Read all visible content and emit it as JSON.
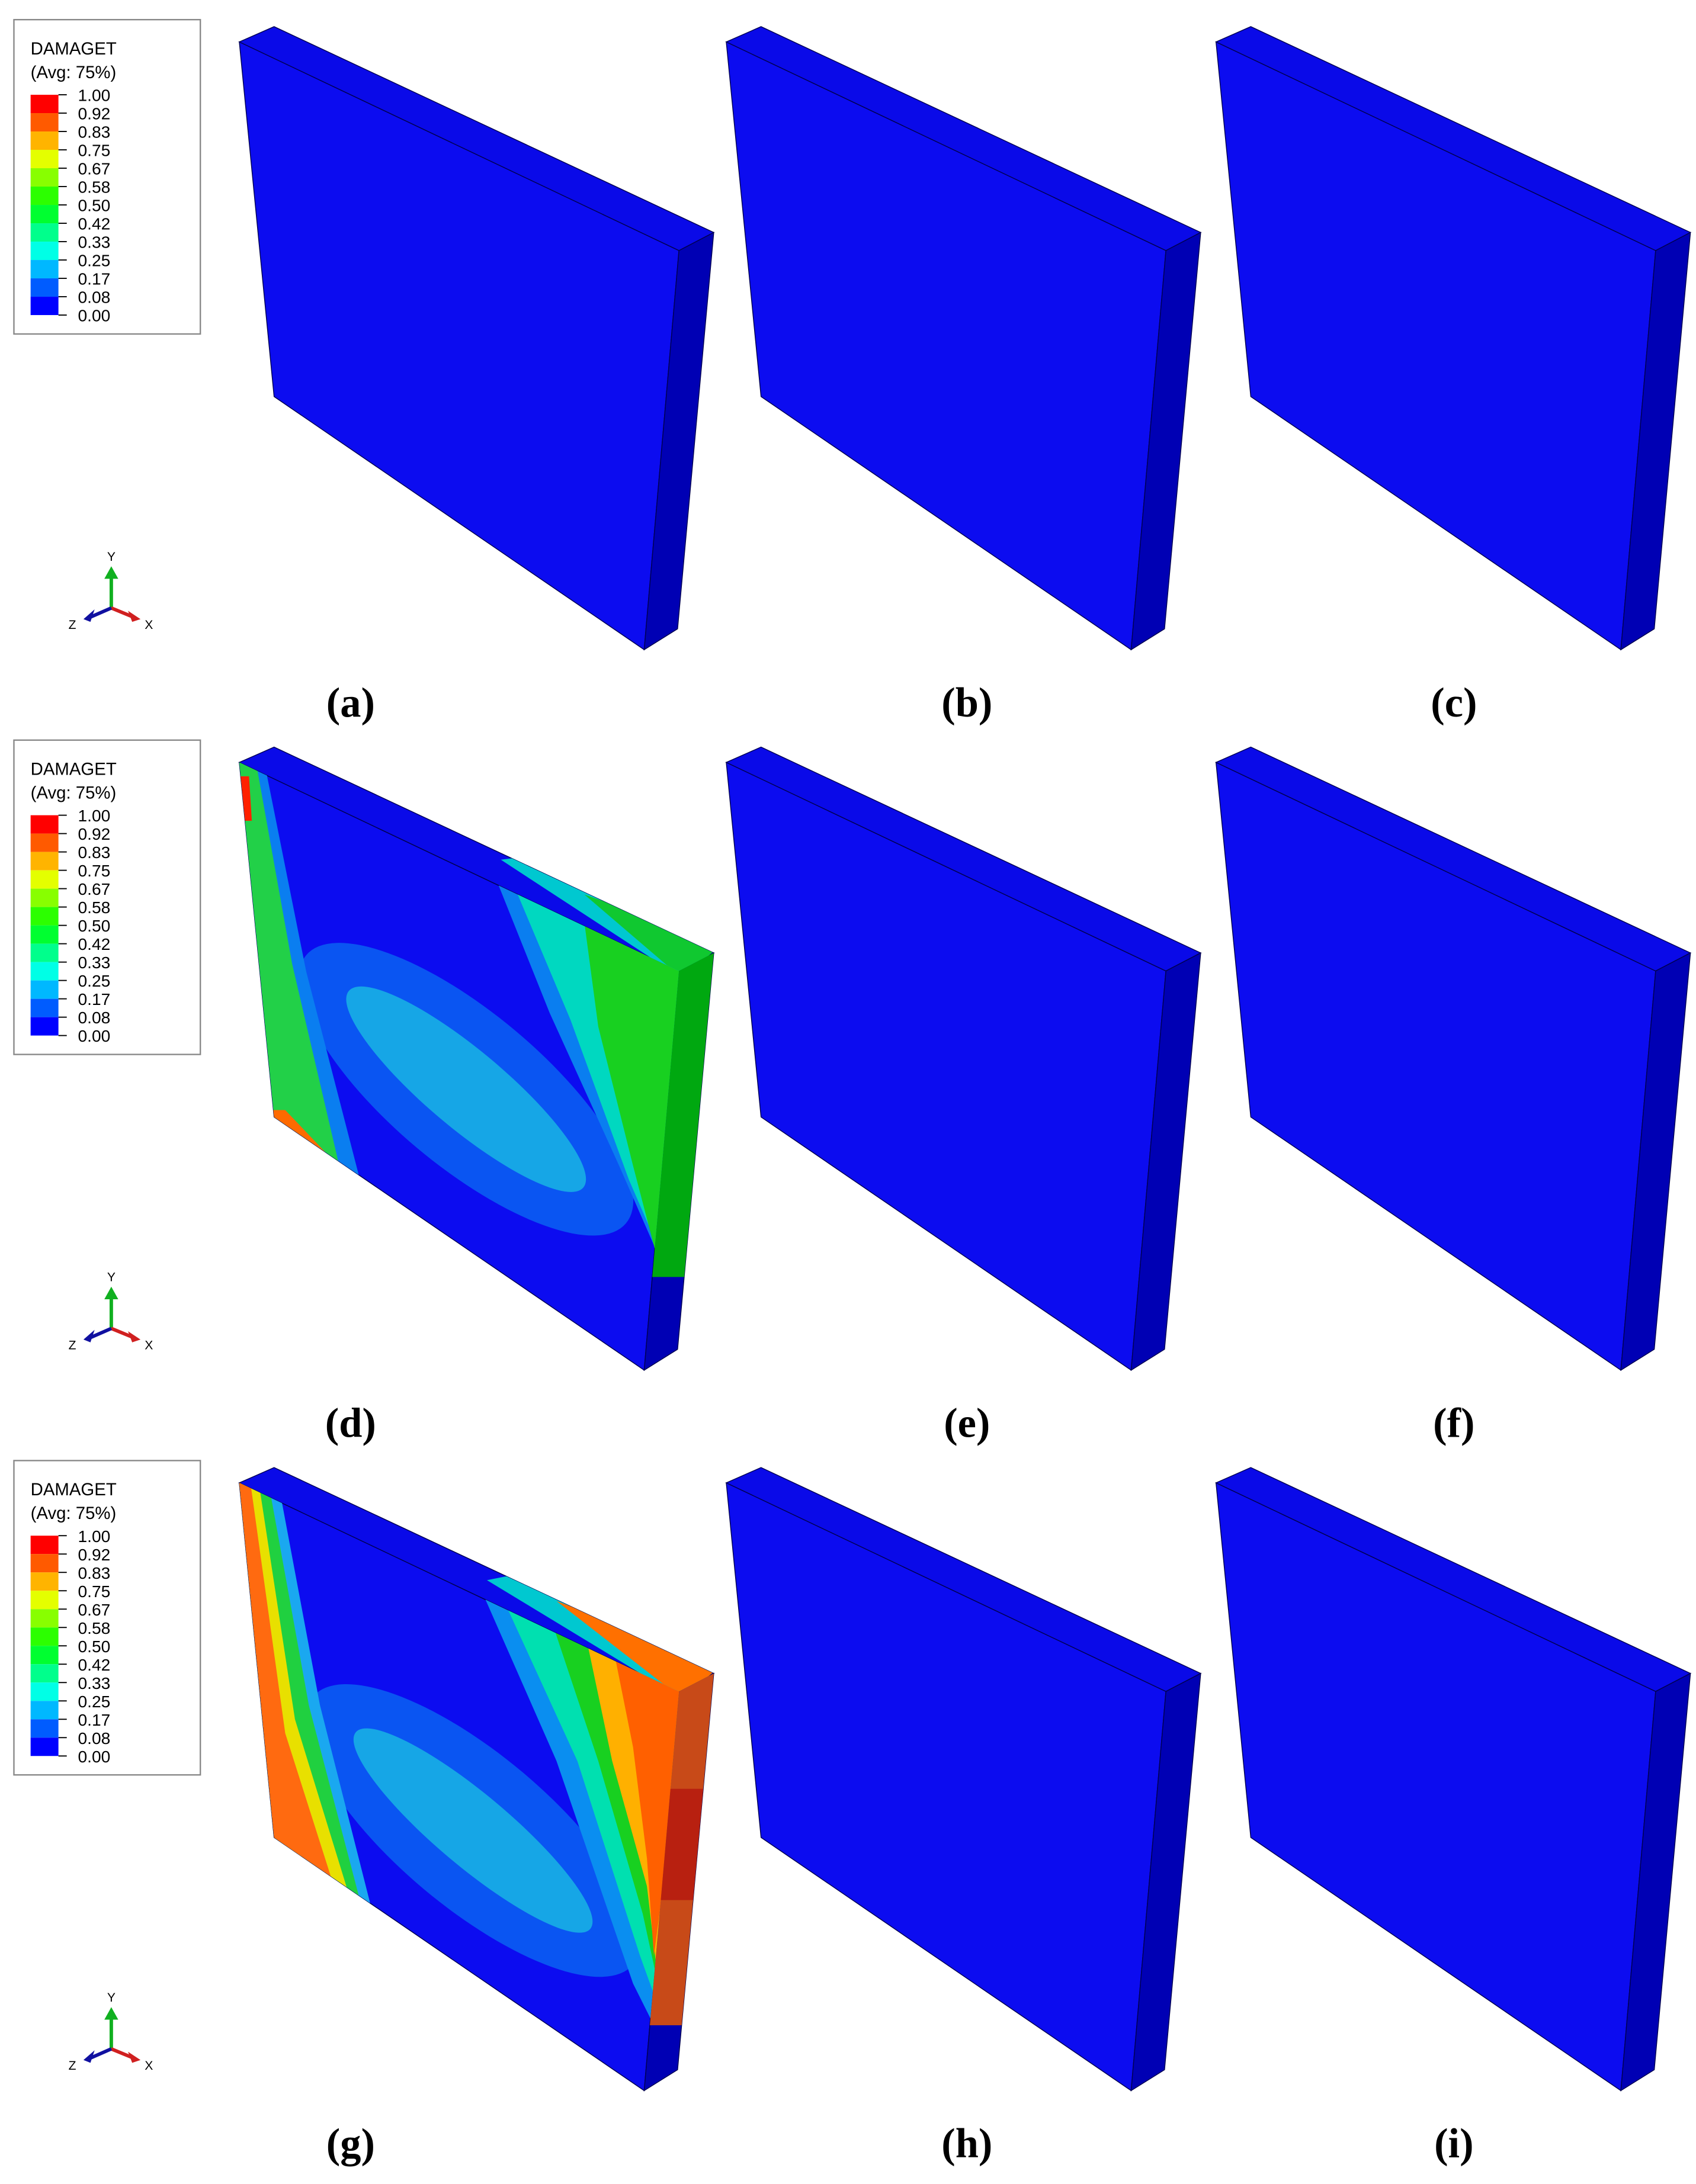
{
  "rows": [
    {
      "legend": {
        "title": "DAMAGET",
        "subtitle": "(Avg: 75%)",
        "levels": [
          "1.00",
          "0.92",
          "0.83",
          "0.75",
          "0.67",
          "0.58",
          "0.50",
          "0.42",
          "0.33",
          "0.25",
          "0.17",
          "0.08",
          "0.00"
        ],
        "colors": [
          "#ff0000",
          "#ff5a00",
          "#ffb400",
          "#e4ff00",
          "#88ff00",
          "#2cff00",
          "#00ff30",
          "#00ff8c",
          "#00ffe6",
          "#00b8ff",
          "#005cff",
          "#0000ff"
        ]
      },
      "triad": {
        "y": "Y",
        "z": "Z",
        "x": "X"
      },
      "panels": [
        "(a)",
        "(b)",
        "(c)"
      ]
    },
    {
      "legend": {
        "title": "DAMAGET",
        "subtitle": "(Avg: 75%)",
        "levels": [
          "1.00",
          "0.92",
          "0.83",
          "0.75",
          "0.67",
          "0.58",
          "0.50",
          "0.42",
          "0.33",
          "0.25",
          "0.17",
          "0.08",
          "0.00"
        ],
        "colors": [
          "#ff0000",
          "#ff5a00",
          "#ffb400",
          "#e4ff00",
          "#88ff00",
          "#2cff00",
          "#00ff30",
          "#00ff8c",
          "#00ffe6",
          "#00b8ff",
          "#005cff",
          "#0000ff"
        ]
      },
      "triad": {
        "y": "Y",
        "z": "Z",
        "x": "X"
      },
      "panels": [
        "(d)",
        "(e)",
        "(f)"
      ]
    },
    {
      "legend": {
        "title": "DAMAGET",
        "subtitle": "(Avg: 75%)",
        "levels": [
          "1.00",
          "0.92",
          "0.83",
          "0.75",
          "0.67",
          "0.58",
          "0.50",
          "0.42",
          "0.33",
          "0.25",
          "0.17",
          "0.08",
          "0.00"
        ],
        "colors": [
          "#ff0000",
          "#ff5a00",
          "#ffb400",
          "#e4ff00",
          "#88ff00",
          "#2cff00",
          "#00ff30",
          "#00ff8c",
          "#00ffe6",
          "#00b8ff",
          "#005cff",
          "#0000ff"
        ]
      },
      "triad": {
        "y": "Y",
        "z": "Z",
        "x": "X"
      },
      "panels": [
        "(g)",
        "(h)",
        "(i)"
      ]
    }
  ]
}
